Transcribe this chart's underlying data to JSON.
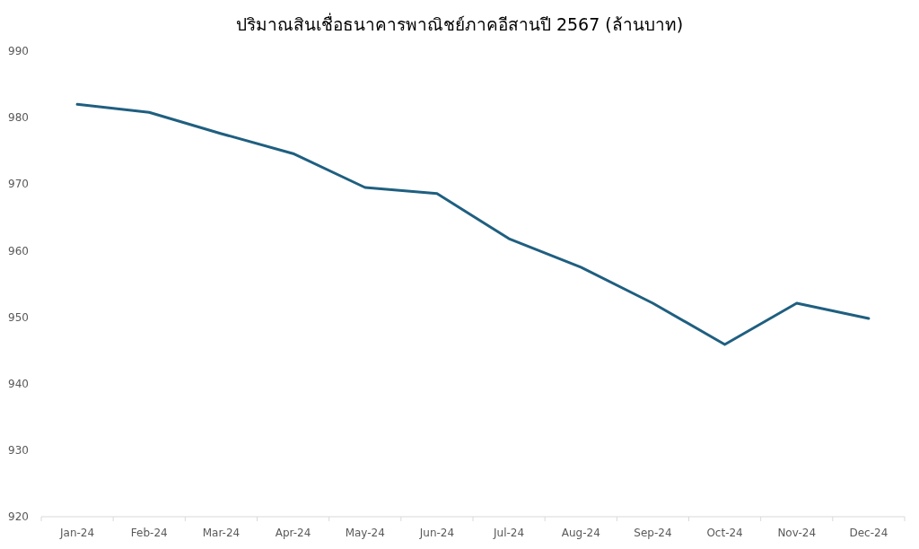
{
  "chart_data": {
    "type": "line",
    "title": "ปริมาณสินเชื่อธนาคารพาณิชย์ภาคอีสานปี  2567 (ล้านบาท)",
    "categories": [
      "Jan-24",
      "Feb-24",
      "Mar-24",
      "Apr-24",
      "May-24",
      "Jun-24",
      "Jul-24",
      "Aug-24",
      "Sep-24",
      "Oct-24",
      "Nov-24",
      "Dec-24"
    ],
    "series": [
      {
        "color": "#1f5f80",
        "values": [
          982.0,
          980.8,
          977.6,
          974.6,
          969.5,
          968.6,
          961.8,
          957.5,
          952.1,
          945.9,
          952.1,
          949.8
        ]
      }
    ],
    "ylim": [
      920,
      990
    ],
    "yticks": [
      920,
      930,
      940,
      950,
      960,
      970,
      980,
      990
    ],
    "grid": false,
    "marker": "none",
    "line_style": "solid"
  }
}
